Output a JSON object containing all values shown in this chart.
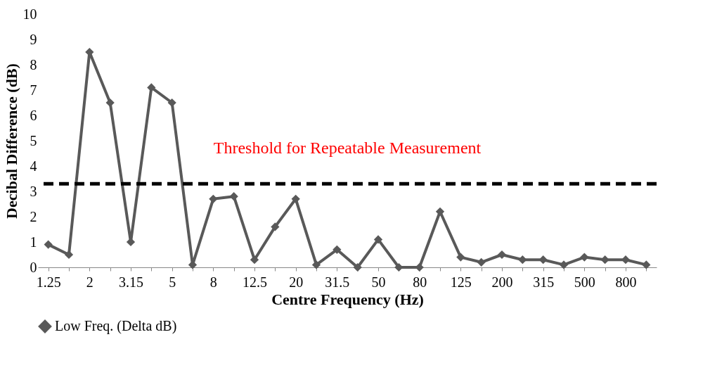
{
  "chart_data": {
    "type": "line",
    "xlabel": "Centre Frequency (Hz)",
    "ylabel": "Decibal Difference (dB)",
    "categories": [
      "1.25",
      null,
      "2",
      null,
      "3.15",
      null,
      "5",
      null,
      "8",
      null,
      "12.5",
      null,
      "20",
      null,
      "31.5",
      null,
      "50",
      null,
      "80",
      null,
      "125",
      null,
      "200",
      null,
      "315",
      null,
      "500",
      null,
      "800",
      null
    ],
    "series": [
      {
        "name": "Low Freq. (Delta dB)",
        "color": "#595959",
        "values": [
          0.9,
          0.5,
          8.5,
          6.5,
          1.0,
          7.1,
          6.5,
          0.1,
          2.7,
          2.8,
          0.3,
          1.6,
          2.7,
          0.1,
          0.7,
          0.0,
          1.1,
          0.0,
          0.0,
          2.2,
          0.4,
          0.2,
          0.5,
          0.3,
          0.3,
          0.1,
          0.4,
          0.3,
          0.3,
          0.1
        ]
      }
    ],
    "ylim": [
      0,
      10
    ],
    "yticks": [
      0,
      1,
      2,
      3,
      4,
      5,
      6,
      7,
      8,
      9,
      10
    ],
    "ref_lines": [
      {
        "axis": "y",
        "value": 3.3,
        "label": "Threshold for Repeatable Measurement",
        "color": "#000000",
        "line_style": "dashed"
      }
    ],
    "grid": false,
    "legend": "bottom",
    "marker": "diamond",
    "line_style": "solid"
  }
}
